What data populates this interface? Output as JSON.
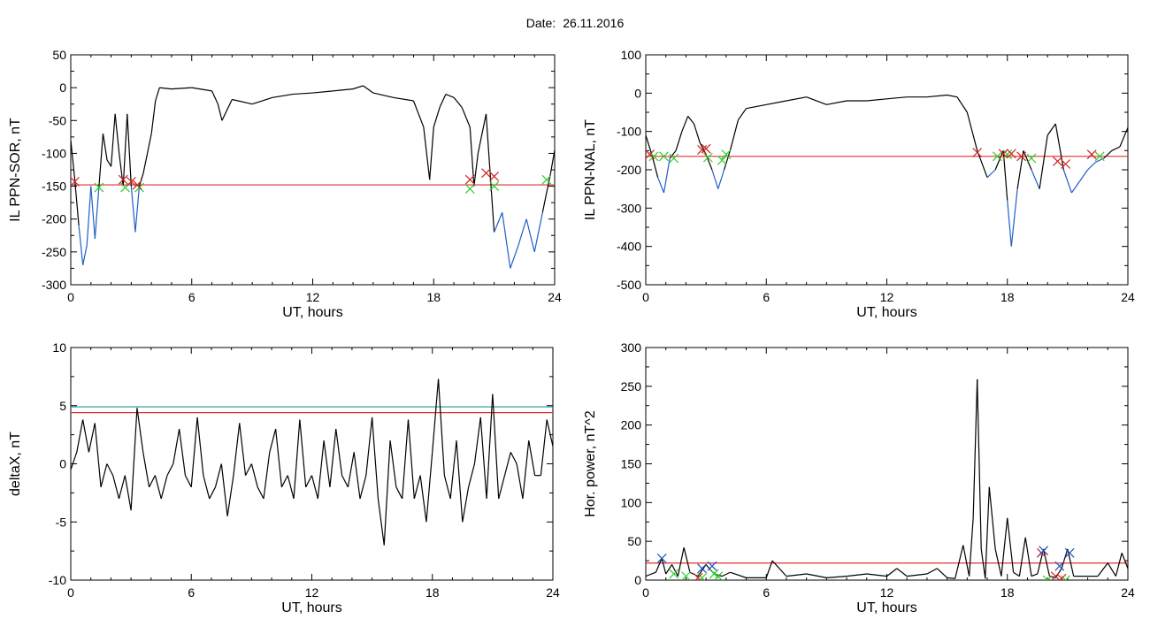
{
  "header": {
    "date_label": "Date:",
    "date_value": "26.11.2016"
  },
  "colors": {
    "trace": "#000000",
    "below": "#1f5fc8",
    "threshold": "#e03030",
    "threshold2": "#1a9c9c",
    "start_marker": "#2ecc2e",
    "end_marker": "#d02020",
    "peak_marker": "#2050c0"
  },
  "chart_data": [
    {
      "type": "line",
      "ylabel": "IL PPN-SOR, nT",
      "xlabel": "UT, hours",
      "xlim": [
        0,
        24
      ],
      "ylim": [
        -300,
        50
      ],
      "xticks": [
        0,
        6,
        12,
        18,
        24
      ],
      "yticks": [
        50,
        0,
        -50,
        -100,
        -150,
        -200,
        -250,
        -300
      ],
      "threshold": -148,
      "x": [
        0,
        0.2,
        0.4,
        0.6,
        0.8,
        1.0,
        1.2,
        1.4,
        1.6,
        1.8,
        2.0,
        2.2,
        2.4,
        2.6,
        2.8,
        3.0,
        3.2,
        3.4,
        3.6,
        3.8,
        4.0,
        4.2,
        4.4,
        5,
        6,
        7,
        7.3,
        7.5,
        8,
        9,
        10,
        11,
        12,
        13,
        14,
        14.5,
        15,
        16,
        17,
        17.5,
        17.8,
        18,
        18.3,
        18.6,
        19,
        19.4,
        19.8,
        20,
        20.2,
        20.6,
        21,
        21.4,
        21.8,
        22.2,
        22.6,
        23,
        23.4,
        23.8,
        24
      ],
      "values": [
        -80,
        -140,
        -210,
        -270,
        -240,
        -150,
        -230,
        -150,
        -70,
        -110,
        -120,
        -40,
        -100,
        -150,
        -40,
        -150,
        -220,
        -150,
        -130,
        -100,
        -70,
        -20,
        0,
        -2,
        0,
        -5,
        -25,
        -50,
        -18,
        -25,
        -15,
        -10,
        -8,
        -5,
        -2,
        3,
        -8,
        -15,
        -20,
        -60,
        -140,
        -60,
        -30,
        -10,
        -15,
        -30,
        -60,
        -150,
        -100,
        -40,
        -220,
        -190,
        -275,
        -240,
        -200,
        -250,
        -190,
        -130,
        -95
      ],
      "start_markers": [
        [
          1.4,
          -152
        ],
        [
          2.7,
          -152
        ],
        [
          3.4,
          -152
        ],
        [
          19.8,
          -154
        ],
        [
          21.0,
          -150
        ],
        [
          23.6,
          -140
        ]
      ],
      "end_markers": [
        [
          0.2,
          -143
        ],
        [
          2.6,
          -140
        ],
        [
          3.0,
          -143
        ],
        [
          3.3,
          -148
        ],
        [
          19.8,
          -140
        ],
        [
          20.6,
          -130
        ],
        [
          21.0,
          -135
        ]
      ]
    },
    {
      "type": "line",
      "ylabel": "IL PPN-NAL, nT",
      "xlabel": "UT, hours",
      "xlim": [
        0,
        24
      ],
      "ylim": [
        -500,
        100
      ],
      "xticks": [
        0,
        6,
        12,
        18,
        24
      ],
      "yticks": [
        100,
        0,
        -100,
        -200,
        -300,
        -400,
        -500
      ],
      "threshold": -165,
      "x": [
        0,
        0.3,
        0.6,
        0.9,
        1.2,
        1.5,
        1.8,
        2.1,
        2.4,
        2.7,
        3.0,
        3.3,
        3.6,
        3.9,
        4.2,
        4.6,
        5,
        6,
        7,
        8,
        9,
        10,
        11,
        12,
        13,
        14,
        15,
        15.5,
        16,
        16.5,
        17,
        17.4,
        17.8,
        18,
        18.2,
        18.5,
        18.8,
        19.2,
        19.6,
        20,
        20.4,
        20.8,
        21.2,
        21.6,
        22,
        22.4,
        22.8,
        23.2,
        23.6,
        24
      ],
      "values": [
        -110,
        -160,
        -220,
        -260,
        -170,
        -150,
        -100,
        -60,
        -80,
        -130,
        -160,
        -200,
        -250,
        -200,
        -150,
        -70,
        -40,
        -30,
        -20,
        -10,
        -30,
        -20,
        -20,
        -15,
        -10,
        -10,
        -5,
        -10,
        -50,
        -150,
        -220,
        -200,
        -150,
        -280,
        -400,
        -250,
        -150,
        -200,
        -250,
        -110,
        -80,
        -200,
        -260,
        -230,
        -200,
        -180,
        -170,
        -150,
        -140,
        -90
      ],
      "start_markers": [
        [
          0.4,
          -165
        ],
        [
          0.9,
          -165
        ],
        [
          1.4,
          -170
        ],
        [
          3.1,
          -168
        ],
        [
          3.8,
          -175
        ],
        [
          4.0,
          -160
        ],
        [
          17.5,
          -165
        ],
        [
          18.0,
          -160
        ],
        [
          19.2,
          -170
        ],
        [
          22.6,
          -165
        ]
      ],
      "end_markers": [
        [
          0.2,
          -160
        ],
        [
          2.8,
          -148
        ],
        [
          3.0,
          -145
        ],
        [
          16.5,
          -155
        ],
        [
          17.8,
          -158
        ],
        [
          18.2,
          -158
        ],
        [
          18.7,
          -165
        ],
        [
          20.5,
          -178
        ],
        [
          20.9,
          -185
        ],
        [
          22.2,
          -160
        ]
      ]
    },
    {
      "type": "line",
      "ylabel": "deltaX, nT",
      "xlabel": "UT, hours",
      "xlim": [
        0,
        24
      ],
      "ylim": [
        -10,
        10
      ],
      "xticks": [
        0,
        6,
        12,
        18,
        24
      ],
      "yticks": [
        10,
        5,
        0,
        -5,
        -10
      ],
      "threshold": 4.4,
      "threshold2": 4.9,
      "x": [
        0,
        0.3,
        0.6,
        0.9,
        1.2,
        1.5,
        1.8,
        2.1,
        2.4,
        2.7,
        3.0,
        3.3,
        3.6,
        3.9,
        4.2,
        4.5,
        4.8,
        5.1,
        5.4,
        5.7,
        6.0,
        6.3,
        6.6,
        6.9,
        7.2,
        7.5,
        7.8,
        8.1,
        8.4,
        8.7,
        9.0,
        9.3,
        9.6,
        9.9,
        10.2,
        10.5,
        10.8,
        11.1,
        11.4,
        11.7,
        12.0,
        12.3,
        12.6,
        12.9,
        13.2,
        13.5,
        13.8,
        14.1,
        14.4,
        14.7,
        15.0,
        15.3,
        15.6,
        15.9,
        16.2,
        16.5,
        16.8,
        17.1,
        17.4,
        17.7,
        18.0,
        18.3,
        18.6,
        18.9,
        19.2,
        19.5,
        19.8,
        20.1,
        20.4,
        20.7,
        21.0,
        21.3,
        21.6,
        21.9,
        22.2,
        22.5,
        22.8,
        23.1,
        23.4,
        23.7,
        24
      ],
      "values": [
        -0.5,
        1,
        3.8,
        1,
        3.5,
        -2,
        0,
        -1,
        -3,
        -1,
        -4,
        4.8,
        1,
        -2,
        -1,
        -3,
        -1,
        0,
        3,
        -1,
        -2,
        4,
        -1,
        -3,
        -2,
        0,
        -4.5,
        -1,
        3.5,
        -1,
        0,
        -2,
        -3,
        1,
        3,
        -2,
        -1,
        -3,
        3.8,
        -2,
        -1,
        -3,
        2,
        -2,
        3,
        -1,
        -2,
        1,
        -3,
        -1,
        4,
        -3,
        -7,
        2,
        -2,
        -3,
        3.8,
        -3,
        -1,
        -5,
        1,
        7.3,
        -1,
        -3,
        2,
        -5,
        -2,
        0,
        4,
        -3,
        6,
        -3,
        -1,
        1,
        0,
        -3,
        2,
        -1,
        -1,
        3.8,
        1.5
      ]
    },
    {
      "type": "line",
      "ylabel": "Hor. power, nT^2",
      "xlabel": "UT, hours",
      "xlim": [
        0,
        24
      ],
      "ylim": [
        0,
        300
      ],
      "xticks": [
        0,
        6,
        12,
        18,
        24
      ],
      "yticks": [
        300,
        250,
        200,
        150,
        100,
        50,
        0
      ],
      "threshold": 22,
      "x": [
        0,
        0.5,
        0.8,
        1.0,
        1.3,
        1.6,
        1.9,
        2.2,
        2.6,
        3.0,
        3.4,
        3.8,
        4.2,
        5,
        6,
        6.3,
        7,
        8,
        9,
        10,
        11,
        12,
        12.5,
        13,
        14,
        14.5,
        15,
        15.4,
        15.8,
        16.1,
        16.3,
        16.5,
        16.7,
        16.9,
        17.1,
        17.4,
        17.7,
        18.0,
        18.3,
        18.6,
        18.9,
        19.2,
        19.5,
        19.8,
        20.1,
        20.4,
        20.7,
        21.0,
        21.3,
        21.6,
        22,
        22.5,
        23,
        23.4,
        23.7,
        24
      ],
      "values": [
        5,
        10,
        28,
        8,
        20,
        5,
        42,
        10,
        5,
        20,
        8,
        5,
        10,
        3,
        3,
        25,
        5,
        8,
        3,
        5,
        8,
        5,
        15,
        5,
        8,
        15,
        3,
        2,
        45,
        5,
        80,
        259,
        40,
        2,
        120,
        40,
        5,
        80,
        10,
        5,
        55,
        5,
        8,
        40,
        5,
        3,
        15,
        40,
        5,
        5,
        5,
        5,
        22,
        5,
        35,
        15
      ],
      "start_markers": [
        [
          1.4,
          8
        ],
        [
          2.0,
          5
        ],
        [
          2.8,
          3
        ],
        [
          3.4,
          8
        ],
        [
          3.6,
          5
        ],
        [
          20.0,
          0
        ],
        [
          20.9,
          0
        ]
      ],
      "end_markers": [
        [
          2.6,
          3
        ],
        [
          19.7,
          35
        ],
        [
          20.4,
          5
        ],
        [
          20.7,
          2
        ]
      ],
      "peak_markers": [
        [
          0.8,
          28
        ],
        [
          2.8,
          15
        ],
        [
          3.3,
          18
        ],
        [
          19.8,
          38
        ],
        [
          20.6,
          18
        ],
        [
          21.1,
          35
        ]
      ]
    }
  ]
}
